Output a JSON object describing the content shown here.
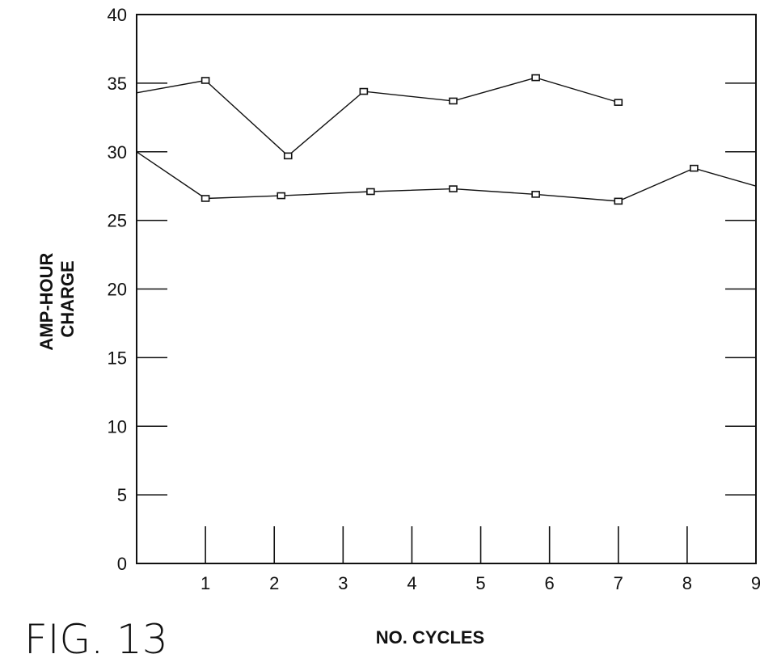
{
  "chart_data": {
    "type": "line",
    "figure_label": "FIG. 13",
    "xlabel": "NO. CYCLES",
    "ylabel": "AMP-HOUR CHARGE",
    "xlim": [
      0,
      9
    ],
    "ylim": [
      0,
      40
    ],
    "xticks": [
      1,
      2,
      3,
      4,
      5,
      6,
      7,
      8,
      9
    ],
    "yticks": [
      0,
      5,
      10,
      15,
      20,
      25,
      30,
      35,
      40
    ],
    "grid": false,
    "legend": "none",
    "series": [
      {
        "x": [
          0,
          1,
          2.2,
          3.3,
          4.6,
          5.8,
          7
        ],
        "y": [
          34.3,
          35.2,
          29.7,
          34.4,
          33.7,
          35.4,
          33.6
        ]
      },
      {
        "x": [
          0,
          1,
          2.1,
          3.4,
          4.6,
          5.8,
          7,
          8.1,
          9
        ],
        "y": [
          30,
          26.6,
          26.8,
          27.1,
          27.3,
          26.9,
          26.4,
          28.8,
          27.5
        ]
      }
    ]
  }
}
